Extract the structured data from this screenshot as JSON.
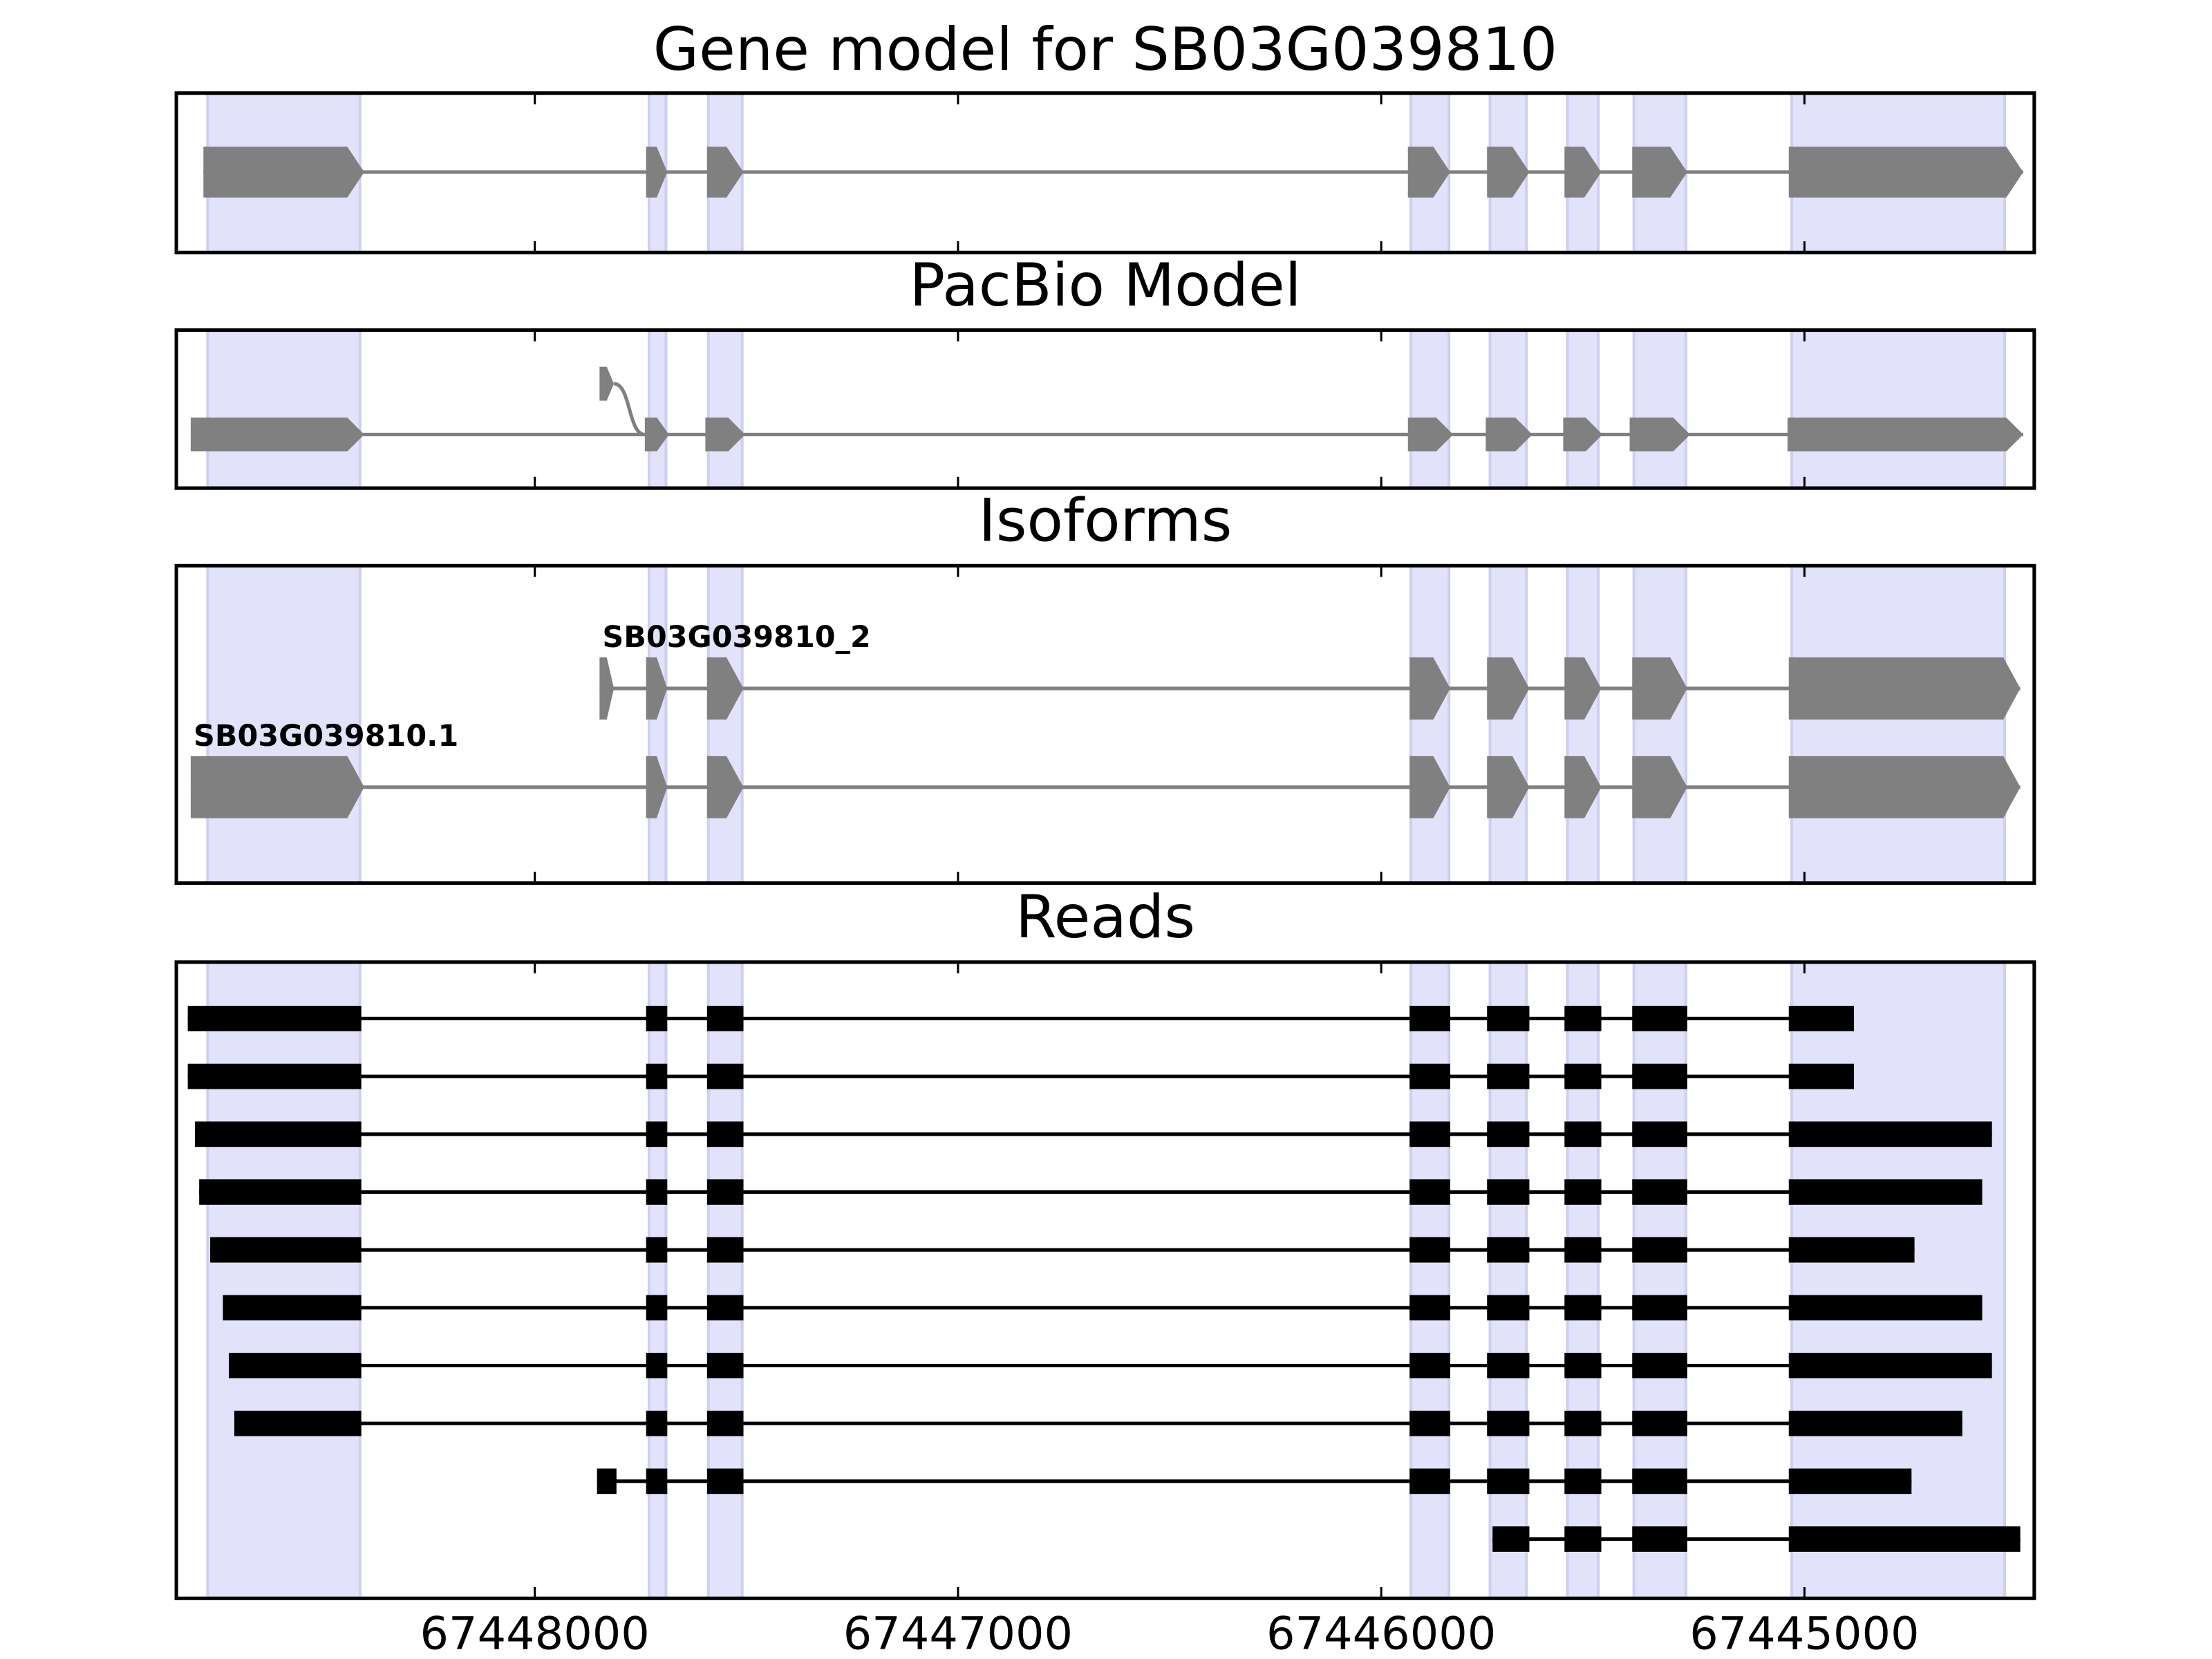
{
  "chart_data": [
    {
      "type": "gene-track",
      "title": "Gene model for SB03G039810",
      "color": "#808080",
      "xlim": [
        67448847,
        67444457
      ],
      "xticks": [
        67448000,
        67447000,
        67446000,
        67445000
      ],
      "shading": [
        [
          67448773,
          67448413
        ],
        [
          67447730,
          67447690
        ],
        [
          67447590,
          67447510
        ],
        [
          67445930,
          67445840
        ],
        [
          67445743,
          67445657
        ],
        [
          67445560,
          67445487
        ],
        [
          67445403,
          67445280
        ],
        [
          67445030,
          67444527
        ]
      ],
      "transcripts": [
        {
          "exons": [
            [
              67448783,
              67448403
            ],
            [
              67447737,
              67447687
            ],
            [
              67447593,
              67447507
            ],
            [
              67445937,
              67445837
            ],
            [
              67445750,
              67445650
            ],
            [
              67445567,
              67445480
            ],
            [
              67445407,
              67445277
            ],
            [
              67445037,
              67444483
            ]
          ]
        }
      ]
    },
    {
      "type": "gene-track",
      "title": "PacBio Model",
      "color": "#808080",
      "xlim": [
        67448847,
        67444457
      ],
      "xticks": [
        67448000,
        67447000,
        67446000,
        67445000
      ],
      "shading": [
        [
          67448773,
          67448413
        ],
        [
          67447730,
          67447690
        ],
        [
          67447590,
          67447510
        ],
        [
          67445930,
          67445840
        ],
        [
          67445743,
          67445657
        ],
        [
          67445560,
          67445487
        ],
        [
          67445403,
          67445280
        ],
        [
          67445030,
          67444527
        ]
      ],
      "transcripts": [
        {
          "exons": [
            [
              67447847,
              67447813
            ]
          ]
        },
        {
          "exons": [
            [
              67448813,
              67448403
            ],
            [
              67447740,
              67447683
            ],
            [
              67447597,
              67447503
            ],
            [
              67445937,
              67445830
            ],
            [
              67445753,
              67445643
            ],
            [
              67445570,
              67445477
            ],
            [
              67445413,
              67445270
            ],
            [
              67445040,
              67444483
            ]
          ]
        }
      ]
    },
    {
      "type": "gene-track",
      "title": "Isoforms",
      "color": "#808080",
      "xlim": [
        67448847,
        67444457
      ],
      "xticks": [
        67448000,
        67447000,
        67446000,
        67445000
      ],
      "shading": [
        [
          67448773,
          67448413
        ],
        [
          67447730,
          67447690
        ],
        [
          67447590,
          67447510
        ],
        [
          67445930,
          67445840
        ],
        [
          67445743,
          67445657
        ],
        [
          67445560,
          67445487
        ],
        [
          67445403,
          67445280
        ],
        [
          67445030,
          67444527
        ]
      ],
      "transcripts": [
        {
          "name": "SB03G039810_2",
          "exons": [
            [
              67447847,
              67447813
            ],
            [
              67447737,
              67447687
            ],
            [
              67447593,
              67447507
            ],
            [
              67445933,
              67445837
            ],
            [
              67445750,
              67445650
            ],
            [
              67445567,
              67445480
            ],
            [
              67445407,
              67445277
            ],
            [
              67445037,
              67444490
            ]
          ]
        },
        {
          "name": "SB03G039810.1",
          "exons": [
            [
              67448813,
              67448403
            ],
            [
              67447737,
              67447687
            ],
            [
              67447593,
              67447507
            ],
            [
              67445933,
              67445837
            ],
            [
              67445750,
              67445650
            ],
            [
              67445567,
              67445480
            ],
            [
              67445407,
              67445277
            ],
            [
              67445037,
              67444490
            ]
          ]
        }
      ]
    },
    {
      "type": "reads",
      "title": "Reads",
      "color": "#000000",
      "xlim": [
        67448847,
        67444457
      ],
      "xticks": [
        67448000,
        67447000,
        67446000,
        67445000
      ],
      "shading": [
        [
          67448773,
          67448413
        ],
        [
          67447730,
          67447690
        ],
        [
          67447590,
          67447510
        ],
        [
          67445930,
          67445840
        ],
        [
          67445743,
          67445657
        ],
        [
          67445560,
          67445487
        ],
        [
          67445403,
          67445280
        ],
        [
          67445030,
          67444527
        ]
      ],
      "transcripts": [
        {
          "exons": [
            [
              67448820,
              67448410
            ],
            [
              67447737,
              67447687
            ],
            [
              67447593,
              67447507
            ],
            [
              67445933,
              67445837
            ],
            [
              67445750,
              67445650
            ],
            [
              67445567,
              67445480
            ],
            [
              67445407,
              67445277
            ],
            [
              67445037,
              67444883
            ]
          ]
        },
        {
          "exons": [
            [
              67448820,
              67448410
            ],
            [
              67447737,
              67447687
            ],
            [
              67447593,
              67447507
            ],
            [
              67445933,
              67445837
            ],
            [
              67445750,
              67445650
            ],
            [
              67445567,
              67445480
            ],
            [
              67445407,
              67445277
            ],
            [
              67445037,
              67444883
            ]
          ]
        },
        {
          "exons": [
            [
              67448803,
              67448410
            ],
            [
              67447737,
              67447687
            ],
            [
              67447593,
              67447507
            ],
            [
              67445933,
              67445837
            ],
            [
              67445750,
              67445650
            ],
            [
              67445567,
              67445480
            ],
            [
              67445407,
              67445277
            ],
            [
              67445037,
              67444557
            ]
          ]
        },
        {
          "exons": [
            [
              67448793,
              67448410
            ],
            [
              67447737,
              67447687
            ],
            [
              67447593,
              67447507
            ],
            [
              67445933,
              67445837
            ],
            [
              67445750,
              67445650
            ],
            [
              67445567,
              67445480
            ],
            [
              67445407,
              67445277
            ],
            [
              67445037,
              67444580
            ]
          ]
        },
        {
          "exons": [
            [
              67448767,
              67448410
            ],
            [
              67447737,
              67447687
            ],
            [
              67447593,
              67447507
            ],
            [
              67445933,
              67445837
            ],
            [
              67445750,
              67445650
            ],
            [
              67445567,
              67445480
            ],
            [
              67445407,
              67445277
            ],
            [
              67445037,
              67444740
            ]
          ]
        },
        {
          "exons": [
            [
              67448737,
              67448410
            ],
            [
              67447737,
              67447687
            ],
            [
              67447593,
              67447507
            ],
            [
              67445933,
              67445837
            ],
            [
              67445750,
              67445650
            ],
            [
              67445567,
              67445480
            ],
            [
              67445407,
              67445277
            ],
            [
              67445037,
              67444580
            ]
          ]
        },
        {
          "exons": [
            [
              67448723,
              67448410
            ],
            [
              67447737,
              67447687
            ],
            [
              67447593,
              67447507
            ],
            [
              67445933,
              67445837
            ],
            [
              67445750,
              67445650
            ],
            [
              67445567,
              67445480
            ],
            [
              67445407,
              67445277
            ],
            [
              67445037,
              67444557
            ]
          ]
        },
        {
          "exons": [
            [
              67448710,
              67448410
            ],
            [
              67447737,
              67447687
            ],
            [
              67447593,
              67447507
            ],
            [
              67445933,
              67445837
            ],
            [
              67445750,
              67445650
            ],
            [
              67445567,
              67445480
            ],
            [
              67445407,
              67445277
            ],
            [
              67445037,
              67444627
            ]
          ]
        },
        {
          "exons": [
            [
              67447853,
              67447807
            ],
            [
              67447737,
              67447687
            ],
            [
              67447593,
              67447507
            ],
            [
              67445933,
              67445837
            ],
            [
              67445750,
              67445650
            ],
            [
              67445567,
              67445480
            ],
            [
              67445407,
              67445277
            ],
            [
              67445037,
              67444747
            ]
          ]
        },
        {
          "exons": [
            [
              67445737,
              67445650
            ],
            [
              67445567,
              67445480
            ],
            [
              67445407,
              67445277
            ],
            [
              67445037,
              67444490
            ]
          ]
        }
      ]
    }
  ]
}
